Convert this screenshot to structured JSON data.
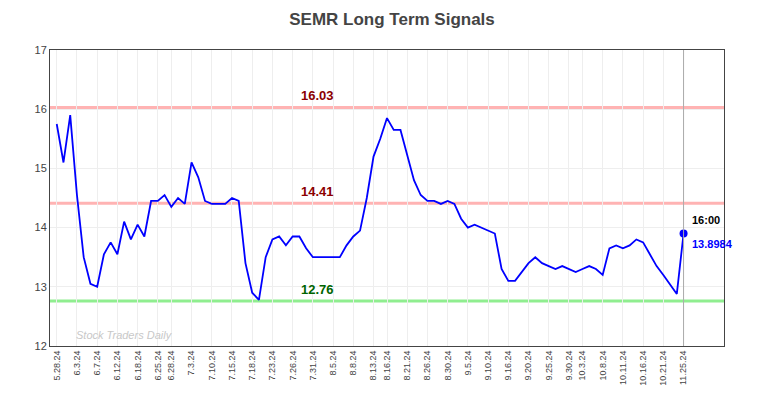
{
  "chart_data": {
    "type": "line",
    "title": "SEMR Long Term Signals",
    "color": "blue",
    "categories": [
      "5.28.24",
      null,
      null,
      "6.3.24",
      null,
      null,
      "6.7.24",
      null,
      null,
      "6.12.24",
      null,
      null,
      "6.18.24",
      null,
      null,
      "6.25.24",
      null,
      "6.28.24",
      null,
      null,
      "7.3.24",
      null,
      null,
      "7.10.24",
      null,
      null,
      "7.15.24",
      null,
      null,
      "7.18.24",
      null,
      null,
      "7.23.24",
      null,
      null,
      "7.26.24",
      null,
      null,
      "7.31.24",
      null,
      null,
      "8.5.24",
      null,
      null,
      "8.8.24",
      null,
      null,
      "8.13.24",
      null,
      "8.16.24",
      null,
      null,
      "8.21.24",
      null,
      null,
      "8.26.24",
      null,
      null,
      "8.30.24",
      null,
      null,
      "9.5.24",
      null,
      null,
      "9.10.24",
      null,
      null,
      "9.16.24",
      null,
      null,
      "9.20.24",
      null,
      null,
      "9.25.24",
      null,
      null,
      "9.30.24",
      null,
      "10.3.24",
      null,
      null,
      "10.8.24",
      null,
      null,
      "10.11.24",
      null,
      null,
      "10.16.24",
      null,
      null,
      "10.21.24",
      null,
      null,
      "11.25.24"
    ],
    "values": [
      15.75,
      15.1,
      15.9,
      14.55,
      13.5,
      13.05,
      13.0,
      13.55,
      13.75,
      13.55,
      14.1,
      13.8,
      14.05,
      13.85,
      14.45,
      14.45,
      14.55,
      14.35,
      14.5,
      14.4,
      15.1,
      14.85,
      14.45,
      14.4,
      14.4,
      14.4,
      14.5,
      14.45,
      13.4,
      12.9,
      12.78,
      13.5,
      13.8,
      13.85,
      13.7,
      13.85,
      13.85,
      13.65,
      13.5,
      13.5,
      13.5,
      13.5,
      13.5,
      13.7,
      13.85,
      13.95,
      14.5,
      15.2,
      15.5,
      15.85,
      15.65,
      15.65,
      15.2,
      14.8,
      14.55,
      14.45,
      14.45,
      14.4,
      14.45,
      14.4,
      14.15,
      14.0,
      14.05,
      14.0,
      13.95,
      13.9,
      13.3,
      13.1,
      13.1,
      13.25,
      13.4,
      13.5,
      13.4,
      13.35,
      13.3,
      13.35,
      13.3,
      13.25,
      13.3,
      13.35,
      13.3,
      13.2,
      13.65,
      13.7,
      13.65,
      13.7,
      13.8,
      13.75,
      13.55,
      13.35,
      13.2,
      13.05,
      12.88,
      13.8984
    ],
    "ylim": [
      12,
      17
    ],
    "yticks": [
      12,
      13,
      14,
      15,
      16,
      17
    ],
    "grid": true,
    "signal_lines": [
      {
        "value": 16.03,
        "label": "16.03",
        "color": "#ffb3b3",
        "label_color": "#8b0000"
      },
      {
        "value": 14.41,
        "label": "14.41",
        "color": "#ffb3b3",
        "label_color": "#8b0000"
      },
      {
        "value": 12.76,
        "label": "12.76",
        "color": "#90ee90",
        "label_color": "#006400"
      }
    ],
    "last_price": {
      "time_label": "16:00",
      "time_color": "black",
      "label": "13.8984",
      "color": "blue",
      "vline_color": "#aaaaaa"
    },
    "watermark": {
      "text": "Stock Traders Daily",
      "color": "#c8c8c8"
    }
  }
}
